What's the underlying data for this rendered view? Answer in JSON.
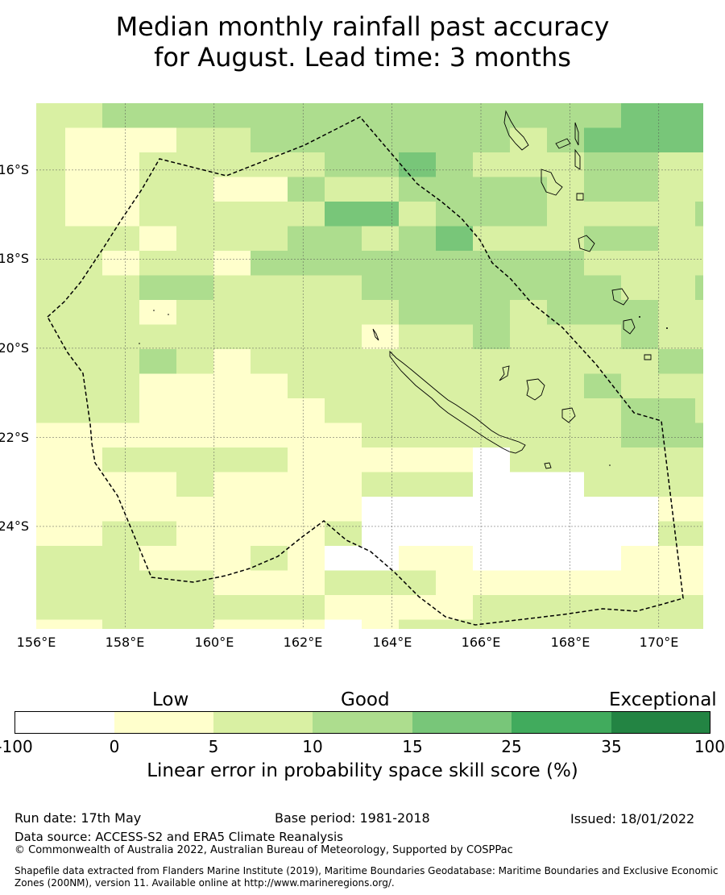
{
  "title": {
    "line1": "Median monthly rainfall past accuracy",
    "line2": "for August. Lead time: 3 months"
  },
  "map": {
    "lat_labels": [
      "16°S",
      "18°S",
      "20°S",
      "22°S",
      "24°S"
    ],
    "lon_labels": [
      "156°E",
      "158°E",
      "160°E",
      "162°E",
      "164°E",
      "166°E",
      "168°E",
      "170°E"
    ],
    "lon_range": [
      156,
      171
    ],
    "lat_range": [
      -14.5,
      -26.3
    ],
    "grid_on": true,
    "eez_boundary": "dashed black",
    "skill_classes": [
      {
        "class": 0,
        "range": "-100 to 0",
        "color": "#ffffff"
      },
      {
        "class": 1,
        "range": "0 to 5",
        "color": "#ffffcc"
      },
      {
        "class": 2,
        "range": "5 to 10",
        "color": "#d9f0a3"
      },
      {
        "class": 3,
        "range": "10 to 15",
        "color": "#addd8e"
      },
      {
        "class": 4,
        "range": "15 to 25",
        "color": "#78c679"
      },
      {
        "class": 5,
        "range": "25 to 35",
        "color": "#41ab5d"
      },
      {
        "class": 6,
        "range": "35 to 100",
        "color": "#238443"
      }
    ],
    "grid_rows": [
      "2233333333333333444444",
      "2111223333333234444444",
      "2112222233432223322224",
      "2112211322333323322224",
      "2112222244233322223223",
      "2221222332342223322224",
      "2212213333333332222323",
      "2223322223333333223322",
      "2221222222333233322222",
      "2222222221223222322222",
      "2223212222222222233222",
      "2221111222222223222222",
      "2221111122222222332222",
      "1111111112222222333221",
      "1122222111110222222221",
      "1111211112220002222223",
      "1111111110000000011112",
      "1122111120000000022221",
      "2221112100110000111112",
      "2222211122211111111112",
      "2222222211112222222221",
      "1122211101222222222231",
      "1111211101111222222222",
      "1111211121111111222222",
      "2111111111111111112222",
      "2111111111111111112222"
    ]
  },
  "colorbar": {
    "headers": [
      "Low",
      "Good",
      "Exceptional"
    ],
    "ticks": [
      "-100",
      "0",
      "5",
      "10",
      "15",
      "25",
      "35",
      "100"
    ],
    "colors": [
      "#ffffff",
      "#ffffcc",
      "#d9f0a3",
      "#addd8e",
      "#78c679",
      "#41ab5d",
      "#238443"
    ],
    "title": "Linear error in probability space skill score (%)"
  },
  "footer": {
    "run_date": "Run date: 17th May",
    "base_period": "Base period: 1981-2018",
    "issued": "Issued: 18/01/2022",
    "data_source": "Data source: ACCESS-S2 and ERA5 Climate Reanalysis",
    "copyright": "© Commonwealth of Australia 2022, Australian Bureau of Meteorology, Supported by COSPPac",
    "shapefile_line1": "Shapefile data extracted from Flanders Marine Institute (2019), Maritime Boundaries Geodatabase: Maritime Boundaries and Exclusive Economic",
    "shapefile_line2": "Zones (200NM), version 11. Available online at http://www.marineregions.org/."
  }
}
